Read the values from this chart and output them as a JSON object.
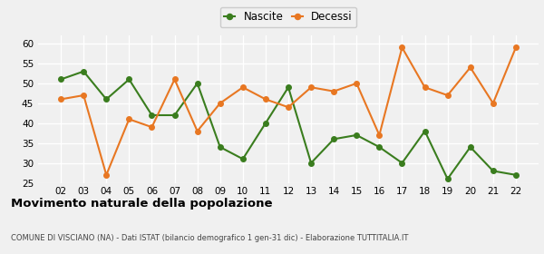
{
  "years": [
    "02",
    "03",
    "04",
    "05",
    "06",
    "07",
    "08",
    "09",
    "10",
    "11",
    "12",
    "13",
    "14",
    "15",
    "16",
    "17",
    "18",
    "19",
    "20",
    "21",
    "22"
  ],
  "nascite": [
    51,
    53,
    46,
    51,
    42,
    42,
    50,
    34,
    31,
    40,
    49,
    30,
    36,
    37,
    34,
    30,
    38,
    26,
    34,
    28,
    27
  ],
  "decessi": [
    46,
    47,
    27,
    41,
    39,
    51,
    38,
    45,
    49,
    46,
    44,
    49,
    48,
    50,
    37,
    59,
    49,
    47,
    54,
    45,
    59
  ],
  "nascite_color": "#3a7d1e",
  "decessi_color": "#e87722",
  "title": "Movimento naturale della popolazione",
  "subtitle": "COMUNE DI VISCIANO (NA) - Dati ISTAT (bilancio demografico 1 gen-31 dic) - Elaborazione TUTTITALIA.IT",
  "ylim": [
    25,
    62
  ],
  "yticks": [
    25,
    30,
    35,
    40,
    45,
    50,
    55,
    60
  ],
  "legend_nascite": "Nascite",
  "legend_decessi": "Decessi",
  "background_color": "#f0f0f0",
  "grid_color": "#ffffff",
  "marker_size": 4,
  "line_width": 1.5
}
